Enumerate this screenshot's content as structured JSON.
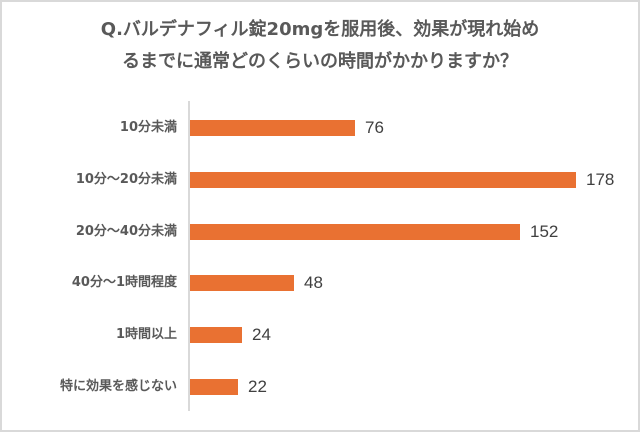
{
  "chart_data": {
    "type": "bar",
    "orientation": "horizontal",
    "title": "Q.バルデナフィル錠20mgを服用後、効果が現れ始めるまでに通常どのくらいの時間がかかりますか？",
    "title_lines": [
      "Q.バルデナフィル錠20mgを服用後、効果が現れ始め",
      "るまでに通常どのくらいの時間がかかりますか？"
    ],
    "categories": [
      "10分未満",
      "10分～20分未満",
      "20分～40分未満",
      "40分～1時間程度",
      "1時間以上",
      "特に効果を感じない"
    ],
    "values": [
      76,
      178,
      152,
      48,
      24,
      22
    ],
    "xlabel": "",
    "ylabel": "",
    "grid": false,
    "legend": null,
    "data_labels": true,
    "bar_color": "#e97132"
  }
}
